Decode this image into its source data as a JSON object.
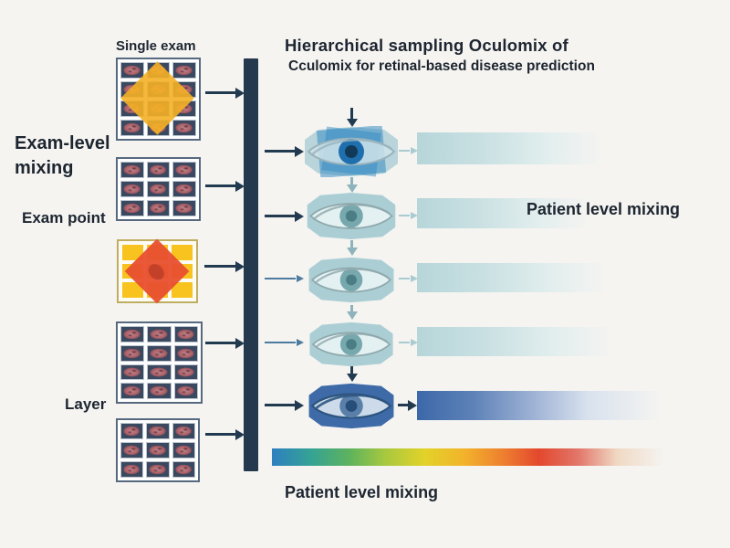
{
  "title": {
    "line1": "Hierarchical sampling Oculomix of",
    "line2": "Cculomix for retinal-based disease prediction"
  },
  "labels": {
    "single_exam": "Single exam",
    "exam_level_mixing_line1": "Exam-level",
    "exam_level_mixing_line2": "mixing",
    "exam_point": "Exam point",
    "layer": "Layer",
    "patient_level_mixing_right": "Patient level mixing",
    "patient_level_mixing_bottom": "Patient level mixing"
  },
  "colors": {
    "bg": "#f5f4f1",
    "text_dark": "#1d2530",
    "dark_navy": "#223a50",
    "steel_blue": "#4d7ba0",
    "teal_arrow": "#8fb3bc",
    "light_teal_arrow": "#a9cbd2",
    "bar_vertical": "#24394e",
    "grid_border": "#56697f",
    "cell_bg": "#3b4960",
    "retina_main": "#ae656d",
    "retina_light": "#c28389",
    "yellow_cell": "#f8c31f",
    "amber_diamond": "#f4b025",
    "red_diamond": "#e85030",
    "red_diamond_core": "#c23b2a"
  },
  "grids": [
    {
      "name": "single-exam-grid",
      "rows": 4,
      "cols": 3,
      "cell": "retina",
      "overlay": "amber-diamond"
    },
    {
      "name": "exam-level-mixing-grid",
      "rows": 3,
      "cols": 3,
      "cell": "retina",
      "overlay": null
    },
    {
      "name": "exam-point-grid",
      "rows": 3,
      "cols": 3,
      "cell": "yellow",
      "overlay": "red-diamond"
    },
    {
      "name": "layer-grid-top",
      "rows": 4,
      "cols": 3,
      "cell": "retina",
      "overlay": null
    },
    {
      "name": "layer-grid-bottom",
      "rows": 3,
      "cols": 3,
      "cell": "retina",
      "overlay": null
    }
  ],
  "eyes": [
    {
      "name": "eye-mixed-blue",
      "colors": {
        "back": "#b9d4da",
        "overlay": "#2d86c2",
        "sclera": "#cfe3ea",
        "iris": "#1f6fae",
        "pupil": "#123a58",
        "lid": "#9ab4bd"
      }
    },
    {
      "name": "eye-teal-1",
      "colors": {
        "back": "#abced5",
        "overlay": "#c7e2e4",
        "sclera": "#e4f1f2",
        "iris": "#76a8ad",
        "pupil": "#4a7e84",
        "lid": "#8fa9ad"
      }
    },
    {
      "name": "eye-teal-2",
      "colors": {
        "back": "#abced5",
        "overlay": "#c7e2e4",
        "sclera": "#e4f1f2",
        "iris": "#76a8ad",
        "pupil": "#4a7e84",
        "lid": "#8fa9ad"
      }
    },
    {
      "name": "eye-teal-3",
      "colors": {
        "back": "#abced5",
        "overlay": "#c7e2e4",
        "sclera": "#e4f1f2",
        "iris": "#76a8ad",
        "pupil": "#4a7e84",
        "lid": "#8fa9ad"
      }
    },
    {
      "name": "eye-result-blue",
      "colors": {
        "back": "#3e6ba8",
        "overlay": "#5d82b8",
        "sclera": "#ccdae9",
        "iris": "#5a7fa8",
        "pupil": "#274e78",
        "lid": "#2d5580"
      }
    }
  ],
  "bars": [
    {
      "name": "feature-bar-1",
      "palette": "teal"
    },
    {
      "name": "feature-bar-2",
      "palette": "teal"
    },
    {
      "name": "feature-bar-3",
      "palette": "teal"
    },
    {
      "name": "feature-bar-4",
      "palette": "teal"
    },
    {
      "name": "feature-bar-5",
      "palette": "blue"
    }
  ],
  "bar_palettes": {
    "teal": [
      "#b7d6da",
      "#c9e0e2",
      "#e2eeee"
    ],
    "blue": [
      "#3c68a8",
      "#5d82b8",
      "#9db1d4",
      "#d9e2ee"
    ]
  },
  "rainbow_stops": [
    "#2e7fc0",
    "#35a394",
    "#5fb35c",
    "#a8c93e",
    "#e3d229",
    "#f2b32b",
    "#ee7f2f",
    "#e3482d",
    "#e2766a",
    "#f0d9c4"
  ]
}
